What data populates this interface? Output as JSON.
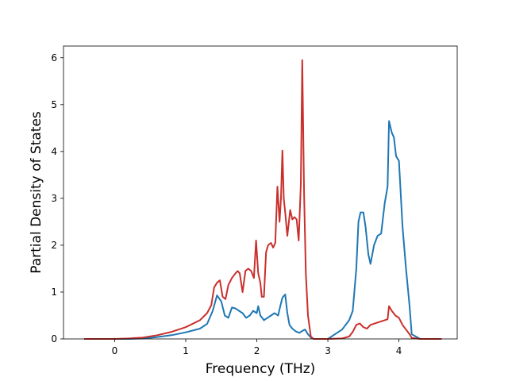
{
  "chart_data": {
    "type": "line",
    "title": "",
    "xlabel": "Frequency (THz)",
    "ylabel": "Partial Density of States",
    "xlim": [
      -0.72,
      4.82
    ],
    "ylim": [
      0,
      6.25
    ],
    "xticks": [
      0,
      1,
      2,
      3,
      4
    ],
    "yticks": [
      0,
      1,
      2,
      3,
      4,
      5,
      6
    ],
    "grid": false,
    "legend": "none",
    "series": [
      {
        "color": "#1f77b4",
        "x": [
          -0.43,
          -0.2,
          0,
          0.2,
          0.4,
          0.6,
          0.8,
          1.0,
          1.2,
          1.3,
          1.38,
          1.44,
          1.5,
          1.55,
          1.6,
          1.65,
          1.7,
          1.75,
          1.8,
          1.85,
          1.9,
          1.95,
          2.0,
          2.02,
          2.05,
          2.1,
          2.15,
          2.2,
          2.25,
          2.3,
          2.33,
          2.36,
          2.4,
          2.43,
          2.46,
          2.5,
          2.55,
          2.6,
          2.65,
          2.68,
          2.72,
          2.76,
          2.8,
          3.0,
          3.1,
          3.2,
          3.3,
          3.35,
          3.4,
          3.43,
          3.46,
          3.5,
          3.53,
          3.57,
          3.6,
          3.65,
          3.7,
          3.75,
          3.8,
          3.84,
          3.86,
          3.9,
          3.93,
          3.96,
          3.98,
          4.0,
          4.05,
          4.1,
          4.15,
          4.18,
          4.3,
          4.6
        ],
        "y": [
          0,
          0,
          0,
          0,
          0.01,
          0.04,
          0.08,
          0.14,
          0.22,
          0.32,
          0.6,
          0.93,
          0.8,
          0.5,
          0.45,
          0.67,
          0.65,
          0.6,
          0.55,
          0.45,
          0.5,
          0.6,
          0.55,
          0.7,
          0.5,
          0.4,
          0.45,
          0.5,
          0.55,
          0.5,
          0.7,
          0.88,
          0.95,
          0.55,
          0.3,
          0.22,
          0.16,
          0.13,
          0.18,
          0.2,
          0.1,
          0.03,
          0,
          0,
          0.1,
          0.2,
          0.4,
          0.6,
          1.5,
          2.5,
          2.7,
          2.7,
          2.4,
          1.8,
          1.6,
          2.0,
          2.2,
          2.25,
          2.9,
          3.25,
          4.65,
          4.4,
          4.3,
          3.9,
          3.85,
          3.8,
          2.4,
          1.5,
          0.7,
          0.1,
          0,
          0
        ]
      },
      {
        "color": "#c9302c",
        "x": [
          -0.43,
          -0.2,
          0,
          0.2,
          0.4,
          0.6,
          0.8,
          1.0,
          1.2,
          1.3,
          1.36,
          1.4,
          1.44,
          1.48,
          1.52,
          1.56,
          1.6,
          1.65,
          1.7,
          1.73,
          1.76,
          1.8,
          1.84,
          1.88,
          1.92,
          1.96,
          1.99,
          2.02,
          2.05,
          2.07,
          2.1,
          2.13,
          2.16,
          2.2,
          2.23,
          2.26,
          2.29,
          2.32,
          2.34,
          2.36,
          2.38,
          2.4,
          2.43,
          2.47,
          2.5,
          2.53,
          2.56,
          2.59,
          2.62,
          2.64,
          2.665,
          2.69,
          2.72,
          2.76,
          2.8,
          3.0,
          3.2,
          3.3,
          3.35,
          3.4,
          3.45,
          3.5,
          3.55,
          3.6,
          3.7,
          3.8,
          3.84,
          3.86,
          3.9,
          3.95,
          4.0,
          4.05,
          4.1,
          4.15,
          4.18,
          4.3,
          4.6
        ],
        "y": [
          0,
          0,
          0,
          0.01,
          0.03,
          0.08,
          0.15,
          0.25,
          0.4,
          0.55,
          0.72,
          1.1,
          1.2,
          1.25,
          0.9,
          0.85,
          1.15,
          1.3,
          1.4,
          1.45,
          1.4,
          1.0,
          1.45,
          1.5,
          1.45,
          1.3,
          2.1,
          1.4,
          1.2,
          0.9,
          0.9,
          1.85,
          2.0,
          2.05,
          1.95,
          2.05,
          3.25,
          2.5,
          3.0,
          4.02,
          3.0,
          2.7,
          2.2,
          2.75,
          2.55,
          2.6,
          2.55,
          2.1,
          3.3,
          5.95,
          3.1,
          1.4,
          0.5,
          0.05,
          0,
          0,
          0.01,
          0.05,
          0.15,
          0.3,
          0.33,
          0.25,
          0.22,
          0.3,
          0.35,
          0.4,
          0.42,
          0.7,
          0.6,
          0.5,
          0.45,
          0.3,
          0.2,
          0.1,
          0.02,
          0,
          0
        ]
      }
    ]
  }
}
